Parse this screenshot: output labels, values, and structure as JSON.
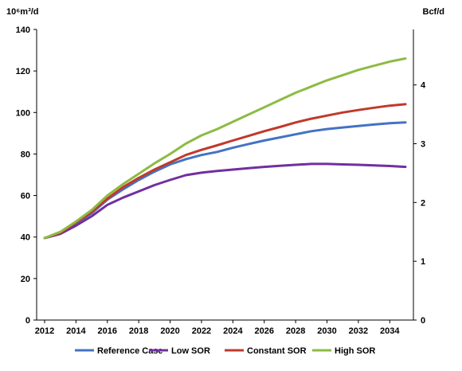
{
  "chart_data": {
    "type": "line",
    "left_axis_unit": "10⁶m³/d",
    "right_axis_unit": "Bcf/d",
    "x": [
      2012,
      2013,
      2014,
      2015,
      2016,
      2017,
      2018,
      2019,
      2020,
      2021,
      2022,
      2023,
      2024,
      2025,
      2026,
      2027,
      2028,
      2029,
      2030,
      2031,
      2032,
      2033,
      2034,
      2035
    ],
    "xlim": [
      2012,
      2035
    ],
    "x_ticks": [
      "2012",
      "2014",
      "2016",
      "2018",
      "2020",
      "2022",
      "2024",
      "2026",
      "2028",
      "2030",
      "2032",
      "2034"
    ],
    "ylim": [
      0,
      140
    ],
    "y_ticks": [
      "0",
      "20",
      "40",
      "60",
      "80",
      "100",
      "120",
      "140"
    ],
    "y2lim": [
      0,
      4.944
    ],
    "y2_ticks": [
      "0",
      "1",
      "2",
      "3",
      "4"
    ],
    "grid": false,
    "legend_position": "bottom",
    "series": [
      {
        "name": "Reference Case",
        "color": "#4472c4",
        "values": [
          39.5,
          42.0,
          46.5,
          51.5,
          58.0,
          63.0,
          67.5,
          71.5,
          75.0,
          77.5,
          79.5,
          81.0,
          83.0,
          84.8,
          86.5,
          88.0,
          89.5,
          91.0,
          92.0,
          92.8,
          93.5,
          94.2,
          94.8,
          95.2
        ]
      },
      {
        "name": "Low SOR",
        "color": "#7030a0",
        "values": [
          39.5,
          41.5,
          45.5,
          50.0,
          55.5,
          59.0,
          62.0,
          65.0,
          67.5,
          69.8,
          71.0,
          71.8,
          72.5,
          73.2,
          73.8,
          74.3,
          74.8,
          75.2,
          75.2,
          75.0,
          74.8,
          74.5,
          74.2,
          73.8
        ]
      },
      {
        "name": "Constant SOR",
        "color": "#c0392b",
        "values": [
          39.5,
          42.0,
          47.0,
          52.0,
          58.5,
          64.0,
          68.5,
          72.5,
          76.0,
          79.5,
          82.0,
          84.2,
          86.5,
          88.7,
          91.0,
          93.0,
          95.2,
          97.0,
          98.5,
          100.0,
          101.2,
          102.3,
          103.3,
          104.0
        ]
      },
      {
        "name": "High SOR",
        "color": "#8cbb43",
        "values": [
          39.5,
          42.5,
          47.5,
          53.0,
          60.0,
          65.5,
          70.5,
          75.5,
          80.0,
          85.0,
          89.0,
          92.0,
          95.5,
          99.0,
          102.5,
          106.0,
          109.5,
          112.5,
          115.5,
          118.0,
          120.5,
          122.5,
          124.5,
          126.0
        ]
      }
    ]
  }
}
